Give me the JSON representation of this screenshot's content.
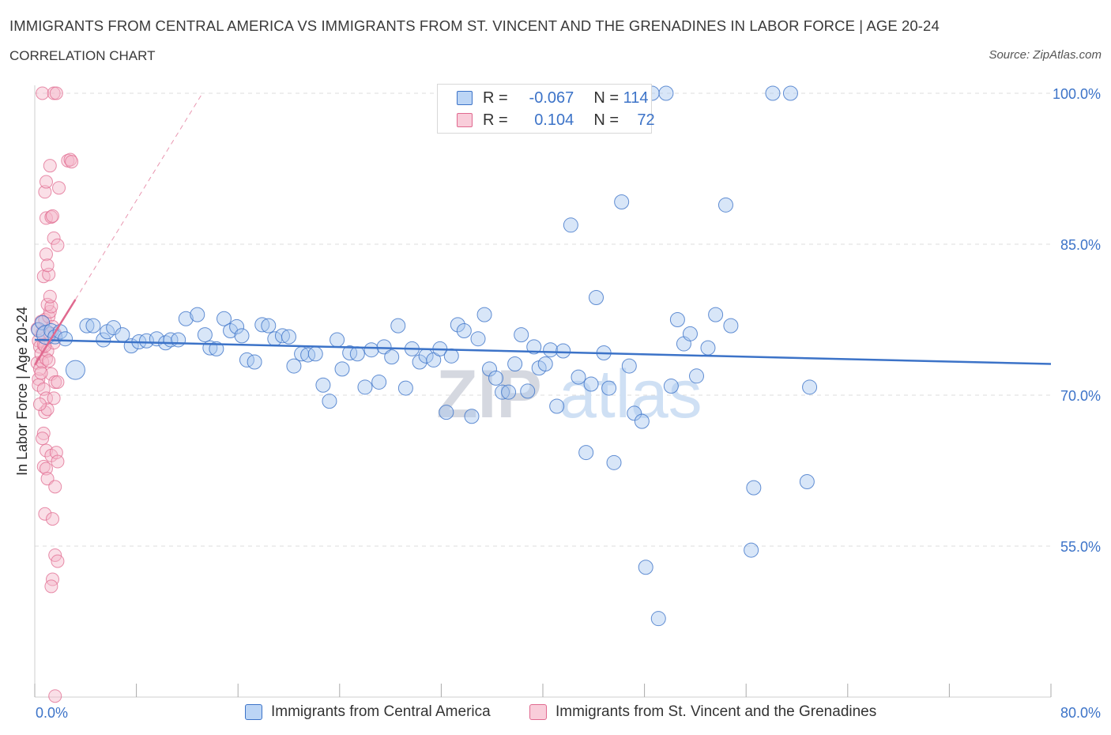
{
  "title": "IMMIGRANTS FROM CENTRAL AMERICA VS IMMIGRANTS FROM ST. VINCENT AND THE GRENADINES IN LABOR FORCE | AGE 20-24",
  "subtitle": "CORRELATION CHART",
  "source": "Source: ZipAtlas.com",
  "watermark": {
    "zip": "ZIP",
    "atlas": "atlas"
  },
  "colors": {
    "blue": "#3c73c8",
    "blue_fill": "#a9c8f0",
    "pink": "#e0698f",
    "pink_fill": "#f4b7ca",
    "grid": "#dddddd"
  },
  "legend": {
    "rows": [
      {
        "r_label": "R =",
        "r_value": "-0.067",
        "n_label": "N =",
        "n_value": "114"
      },
      {
        "r_label": "R =",
        "r_value": "0.104",
        "n_label": "N =",
        "n_value": "72"
      }
    ]
  },
  "bottom_legend": [
    "Immigrants from Central America",
    "Immigrants from St. Vincent and the Grenadines"
  ],
  "chart_data": {
    "type": "scatter",
    "title": "IMMIGRANTS FROM CENTRAL AMERICA VS IMMIGRANTS FROM ST. VINCENT AND THE GRENADINES IN LABOR FORCE | AGE 20-24",
    "xlabel": "",
    "ylabel": "In Labor Force | Age 20-24",
    "xlim": [
      0,
      80
    ],
    "ylim": [
      40,
      100
    ],
    "x_tick_labels": [
      "0.0%",
      "80.0%"
    ],
    "y_ticks": [
      55,
      70,
      85,
      100
    ],
    "y_tick_labels": [
      "55.0%",
      "70.0%",
      "85.0%",
      "100.0%"
    ],
    "series": [
      {
        "name": "Immigrants from Central America",
        "color": "#3c73c8",
        "R": -0.067,
        "N": 114,
        "trend": [
          [
            0,
            75.5
          ],
          [
            80,
            73.1
          ]
        ],
        "points": [
          [
            0.3,
            76.5
          ],
          [
            0.6,
            77.2
          ],
          [
            0.9,
            76.0
          ],
          [
            1.3,
            76.4
          ],
          [
            1.6,
            75.8
          ],
          [
            2.0,
            76.3
          ],
          [
            2.4,
            75.6
          ],
          [
            3.2,
            72.5
          ],
          [
            4.1,
            76.9
          ],
          [
            4.6,
            76.9
          ],
          [
            5.4,
            75.5
          ],
          [
            5.7,
            76.3
          ],
          [
            6.2,
            76.7
          ],
          [
            6.9,
            76.0
          ],
          [
            7.6,
            74.9
          ],
          [
            8.2,
            75.3
          ],
          [
            8.8,
            75.4
          ],
          [
            9.6,
            75.6
          ],
          [
            10.3,
            75.2
          ],
          [
            10.7,
            75.5
          ],
          [
            11.3,
            75.5
          ],
          [
            11.9,
            77.6
          ],
          [
            12.8,
            78.0
          ],
          [
            13.4,
            76.0
          ],
          [
            13.8,
            74.7
          ],
          [
            14.3,
            74.6
          ],
          [
            14.9,
            77.6
          ],
          [
            15.4,
            76.4
          ],
          [
            15.9,
            76.8
          ],
          [
            16.3,
            75.9
          ],
          [
            16.7,
            73.5
          ],
          [
            17.3,
            73.3
          ],
          [
            17.9,
            77.0
          ],
          [
            18.4,
            76.9
          ],
          [
            18.9,
            75.6
          ],
          [
            19.5,
            75.9
          ],
          [
            20.0,
            75.8
          ],
          [
            20.4,
            72.9
          ],
          [
            21.0,
            74.1
          ],
          [
            21.5,
            74.0
          ],
          [
            22.1,
            74.1
          ],
          [
            22.7,
            71.0
          ],
          [
            23.2,
            69.4
          ],
          [
            23.8,
            75.5
          ],
          [
            24.2,
            72.6
          ],
          [
            24.8,
            74.2
          ],
          [
            25.4,
            74.1
          ],
          [
            26.0,
            70.8
          ],
          [
            26.5,
            74.5
          ],
          [
            27.1,
            71.3
          ],
          [
            27.5,
            74.8
          ],
          [
            28.1,
            73.8
          ],
          [
            28.6,
            76.9
          ],
          [
            29.2,
            70.7
          ],
          [
            29.7,
            74.6
          ],
          [
            30.3,
            73.3
          ],
          [
            30.8,
            73.9
          ],
          [
            31.4,
            73.5
          ],
          [
            31.9,
            74.6
          ],
          [
            32.4,
            68.3
          ],
          [
            32.8,
            73.9
          ],
          [
            33.3,
            77.0
          ],
          [
            33.8,
            76.4
          ],
          [
            34.4,
            67.9
          ],
          [
            34.9,
            75.6
          ],
          [
            35.4,
            78.0
          ],
          [
            35.8,
            72.6
          ],
          [
            36.3,
            71.7
          ],
          [
            36.8,
            70.3
          ],
          [
            37.3,
            70.3
          ],
          [
            37.8,
            73.1
          ],
          [
            38.3,
            76.0
          ],
          [
            38.8,
            70.4
          ],
          [
            39.3,
            74.8
          ],
          [
            39.7,
            72.7
          ],
          [
            40.2,
            73.1
          ],
          [
            40.6,
            74.5
          ],
          [
            41.1,
            68.9
          ],
          [
            41.6,
            74.4
          ],
          [
            42.2,
            86.9
          ],
          [
            42.8,
            71.8
          ],
          [
            43.4,
            64.3
          ],
          [
            43.8,
            71.1
          ],
          [
            44.2,
            79.7
          ],
          [
            44.8,
            74.2
          ],
          [
            45.2,
            70.7
          ],
          [
            45.6,
            63.3
          ],
          [
            46.2,
            89.2
          ],
          [
            46.8,
            72.9
          ],
          [
            47.2,
            68.2
          ],
          [
            47.8,
            67.4
          ],
          [
            48.1,
            52.9
          ],
          [
            48.6,
            100.0
          ],
          [
            49.1,
            47.8
          ],
          [
            50.1,
            70.9
          ],
          [
            50.6,
            77.5
          ],
          [
            51.1,
            75.1
          ],
          [
            51.6,
            76.1
          ],
          [
            52.1,
            71.9
          ],
          [
            53.0,
            74.7
          ],
          [
            53.6,
            78.0
          ],
          [
            54.4,
            88.9
          ],
          [
            54.8,
            76.9
          ],
          [
            56.4,
            54.6
          ],
          [
            56.6,
            60.8
          ],
          [
            58.1,
            100.0
          ],
          [
            59.5,
            100.0
          ],
          [
            60.8,
            61.4
          ],
          [
            61.0,
            70.8
          ],
          [
            49.7,
            100.0
          ]
        ]
      },
      {
        "name": "Immigrants from St. Vincent and the Grenadines",
        "color": "#e0698f",
        "R": 0.104,
        "N": 72,
        "trend": [
          [
            0,
            73.0
          ],
          [
            3.2,
            79.5
          ]
        ],
        "trend_extension": [
          [
            3.2,
            79.5
          ],
          [
            13.2,
            100.0
          ]
        ],
        "points": [
          [
            0.2,
            76.6
          ],
          [
            0.3,
            75.4
          ],
          [
            0.4,
            74.8
          ],
          [
            0.5,
            77.3
          ],
          [
            0.2,
            73.2
          ],
          [
            0.3,
            71.6
          ],
          [
            0.4,
            72.6
          ],
          [
            0.5,
            74.1
          ],
          [
            0.6,
            73.3
          ],
          [
            0.3,
            71.0
          ],
          [
            0.6,
            76.2
          ],
          [
            0.7,
            75.0
          ],
          [
            0.9,
            73.6
          ],
          [
            1.0,
            74.4
          ],
          [
            0.8,
            77.5
          ],
          [
            1.1,
            77.8
          ],
          [
            1.2,
            78.3
          ],
          [
            1.0,
            79.0
          ],
          [
            1.3,
            78.8
          ],
          [
            1.2,
            79.8
          ],
          [
            1.4,
            76.8
          ],
          [
            1.5,
            75.2
          ],
          [
            1.6,
            76.1
          ],
          [
            0.7,
            81.8
          ],
          [
            1.1,
            82.0
          ],
          [
            0.9,
            84.0
          ],
          [
            1.0,
            82.9
          ],
          [
            1.5,
            85.6
          ],
          [
            1.8,
            84.9
          ],
          [
            0.9,
            87.6
          ],
          [
            1.3,
            87.7
          ],
          [
            1.4,
            87.8
          ],
          [
            0.8,
            90.2
          ],
          [
            0.9,
            91.2
          ],
          [
            1.2,
            92.8
          ],
          [
            1.9,
            90.6
          ],
          [
            2.6,
            93.3
          ],
          [
            2.8,
            93.4
          ],
          [
            2.9,
            93.2
          ],
          [
            0.6,
            100.0
          ],
          [
            1.5,
            100.0
          ],
          [
            1.7,
            100.0
          ],
          [
            1.3,
            72.1
          ],
          [
            1.6,
            71.3
          ],
          [
            0.7,
            70.6
          ],
          [
            0.9,
            69.7
          ],
          [
            1.5,
            69.7
          ],
          [
            0.8,
            68.3
          ],
          [
            1.0,
            68.6
          ],
          [
            0.7,
            66.2
          ],
          [
            0.6,
            65.7
          ],
          [
            0.9,
            64.5
          ],
          [
            1.3,
            64.0
          ],
          [
            1.7,
            64.3
          ],
          [
            0.7,
            62.9
          ],
          [
            0.9,
            62.7
          ],
          [
            1.8,
            63.4
          ],
          [
            1.0,
            61.7
          ],
          [
            1.6,
            60.9
          ],
          [
            0.8,
            58.2
          ],
          [
            1.4,
            57.7
          ],
          [
            1.6,
            54.1
          ],
          [
            1.8,
            53.5
          ],
          [
            1.4,
            51.7
          ],
          [
            1.3,
            51.0
          ],
          [
            1.6,
            40.1
          ],
          [
            0.5,
            72.2
          ],
          [
            0.8,
            74.9
          ],
          [
            1.1,
            73.4
          ],
          [
            1.8,
            71.3
          ],
          [
            0.4,
            69.1
          ],
          [
            1.2,
            76.1
          ]
        ]
      }
    ]
  }
}
